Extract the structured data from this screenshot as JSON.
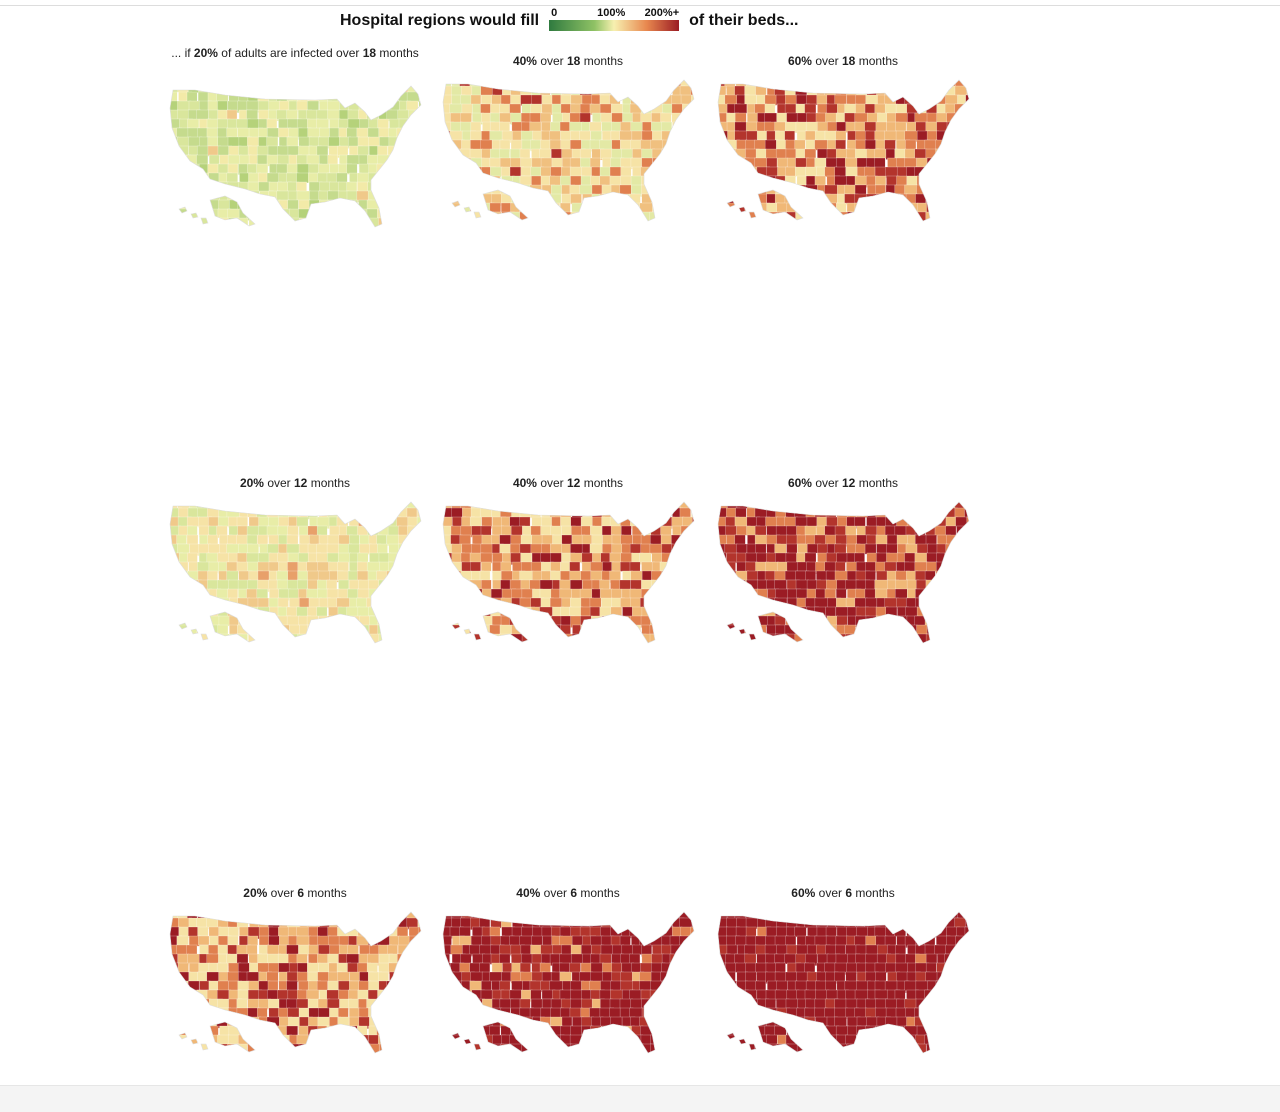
{
  "header": {
    "prefix": "Hospital regions would fill",
    "suffix": "of their beds...",
    "legend": {
      "min_label": "0",
      "mid_label": "100%",
      "max_label": "200%+",
      "colors": [
        "#2f7a3f",
        "#8fc265",
        "#f7f0b0",
        "#e8884f",
        "#9b1c24"
      ]
    }
  },
  "maps": [
    {
      "pre": "... if ",
      "pct": "20%",
      "mid": " of adults are infected over ",
      "months": "18",
      "post": " months",
      "palette": [
        "#c5db8d",
        "#d9e69c",
        "#e8eda7",
        "#b5d27a",
        "#f3eaa8",
        "#f0c98a"
      ],
      "weights": [
        3,
        4,
        4,
        1,
        3,
        0.3
      ]
    },
    {
      "pre": "",
      "pct": "40%",
      "mid": " over ",
      "months": "18",
      "post": " months",
      "palette": [
        "#e3e9a5",
        "#f6e3a6",
        "#f0c07f",
        "#e0804f",
        "#b3342c"
      ],
      "weights": [
        3,
        4,
        3,
        2,
        0.4
      ]
    },
    {
      "pre": "",
      "pct": "60%",
      "mid": " over ",
      "months": "18",
      "post": " months",
      "palette": [
        "#f6e3a6",
        "#f0b877",
        "#e0804f",
        "#b3342c",
        "#9b1c24"
      ],
      "weights": [
        2,
        3,
        3,
        2,
        1.5
      ]
    },
    {
      "pre": "",
      "pct": "20%",
      "mid": " over ",
      "months": "12",
      "post": " months",
      "palette": [
        "#d9e69c",
        "#e8eda7",
        "#f6e3a6",
        "#f0c98a",
        "#e8a06a"
      ],
      "weights": [
        3,
        3,
        4,
        2,
        0.5
      ]
    },
    {
      "pre": "",
      "pct": "40%",
      "mid": " over ",
      "months": "12",
      "post": " months",
      "palette": [
        "#f6e3a6",
        "#f0b877",
        "#e0804f",
        "#b3342c",
        "#9b1c24"
      ],
      "weights": [
        3,
        3,
        3,
        1.5,
        1.2
      ]
    },
    {
      "pre": "",
      "pct": "60%",
      "mid": " over ",
      "months": "12",
      "post": " months",
      "palette": [
        "#f0b877",
        "#e0804f",
        "#b3342c",
        "#9b1c24"
      ],
      "weights": [
        1.5,
        2,
        2,
        5
      ]
    },
    {
      "pre": "",
      "pct": "20%",
      "mid": " over ",
      "months": "6",
      "post": " months",
      "palette": [
        "#f6e3a6",
        "#f0b877",
        "#e0804f",
        "#b3342c",
        "#9b1c24"
      ],
      "weights": [
        3,
        3,
        3,
        1.5,
        1.5
      ]
    },
    {
      "pre": "",
      "pct": "40%",
      "mid": " over ",
      "months": "6",
      "post": " months",
      "palette": [
        "#f0b877",
        "#e0804f",
        "#b3342c",
        "#9b1c24"
      ],
      "weights": [
        0.6,
        1,
        2,
        8
      ]
    },
    {
      "pre": "",
      "pct": "60%",
      "mid": " over ",
      "months": "6",
      "post": " months",
      "palette": [
        "#e0804f",
        "#b3342c",
        "#9b1c24"
      ],
      "weights": [
        0.2,
        1,
        12
      ]
    }
  ]
}
